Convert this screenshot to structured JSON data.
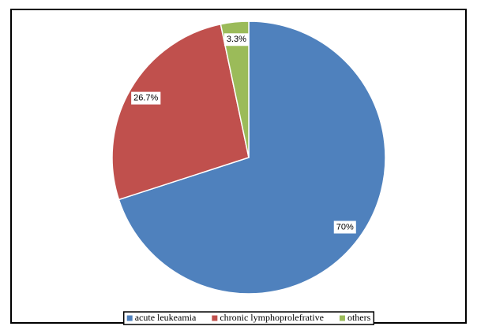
{
  "chart_data": {
    "type": "pie",
    "categories": [
      "acute leukeamia",
      "chronic lymphoprolefrative",
      "others"
    ],
    "values": [
      70,
      26.7,
      3.3
    ],
    "value_labels": [
      "70%",
      "26.7%",
      "3.3%"
    ],
    "colors": [
      "#4f81bd",
      "#c0504d",
      "#9bbb59"
    ],
    "legend": "bottom"
  }
}
